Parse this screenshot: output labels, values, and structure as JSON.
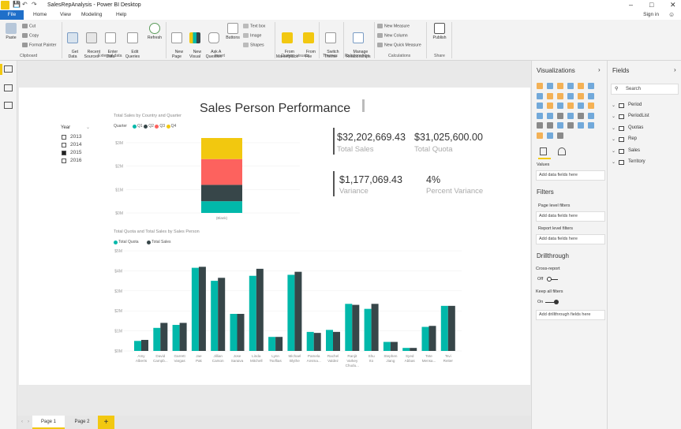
{
  "window": {
    "title": "SalesRepAnalysis - Power BI Desktop",
    "controls": {
      "minimize": "–",
      "restore": "□",
      "close": "✕"
    }
  },
  "menu": {
    "file": "File",
    "tabs": [
      "Home",
      "View",
      "Modeling",
      "Help"
    ],
    "signin": "Sign in"
  },
  "ribbon": {
    "clipboard": {
      "paste": "Paste",
      "cut": "Cut",
      "copy": "Copy",
      "format_painter": "Format Painter",
      "group": "Clipboard"
    },
    "external": {
      "get_data": "Get\nData",
      "recent_sources": "Recent\nSources",
      "enter_data": "Enter\nData",
      "edit_queries": "Edit\nQueries",
      "refresh": "Refresh",
      "group": "External data"
    },
    "insert": {
      "new_page": "New\nPage",
      "new_visual": "New\nVisual",
      "ask": "Ask A\nQuestion",
      "buttons": "Buttons",
      "text_box": "Text box",
      "image": "Image",
      "shapes": "Shapes",
      "group": "Insert"
    },
    "custom": {
      "marketplace": "From\nMarketplace",
      "file": "From\nFile",
      "group": "Custom visuals"
    },
    "themes": {
      "switch": "Switch\nTheme",
      "group": "Themes"
    },
    "relationships": {
      "manage": "Manage\nRelationships",
      "group": "Relationships"
    },
    "calculations": {
      "new_measure": "New Measure",
      "new_column": "New Column",
      "new_quick": "New Quick Measure",
      "group": "Calculations"
    },
    "share": {
      "publish": "Publish",
      "group": "Share"
    }
  },
  "report": {
    "title": "Sales Person Performance",
    "slicer": {
      "title": "Year",
      "items": [
        {
          "label": "2013",
          "checked": false
        },
        {
          "label": "2014",
          "checked": false
        },
        {
          "label": "2015",
          "checked": true
        },
        {
          "label": "2016",
          "checked": false
        }
      ]
    },
    "cards": [
      {
        "value": "$32,202,669.43",
        "label": "Total Sales"
      },
      {
        "value": "$31,025,600.00",
        "label": "Total Quota"
      },
      {
        "value": "$1,177,069.43",
        "label": "Variance"
      },
      {
        "value": "4%",
        "label": "Percent Variance"
      }
    ]
  },
  "chart_data": [
    {
      "type": "bar",
      "stacked": true,
      "title": "Total Sales by Country and Quarter",
      "legend_title": "Quarter",
      "legend_position": "top-left",
      "categories": [
        "(Blank)"
      ],
      "series": [
        {
          "name": "Q1",
          "color": "#01b8aa",
          "values": [
            0.5
          ]
        },
        {
          "name": "Q2",
          "color": "#374649",
          "values": [
            0.7
          ]
        },
        {
          "name": "Q3",
          "color": "#fd625e",
          "values": [
            1.1
          ]
        },
        {
          "name": "Q4",
          "color": "#f2c80f",
          "values": [
            0.9
          ]
        }
      ],
      "yticks": [
        "$0M",
        "$1M",
        "$2M",
        "$3M"
      ],
      "ylim": [
        0,
        3.2
      ]
    },
    {
      "type": "bar",
      "title": "Total Quota and Total Sales by Sales Person",
      "legend_position": "top-left",
      "categories": [
        "Amy Alberts",
        "David Campb...",
        "Garrett Vargas",
        "Jae Pak",
        "Jillian Carson",
        "Jose Saraiva",
        "Linda Mitchell",
        "Lynn Tsoflias",
        "Michael Blythe",
        "Pamela Ansma...",
        "Rachel Valdez",
        "Ranjit Varkey Chudu...",
        "Shu Ito",
        "Stephen Jiang",
        "Syed Abbas",
        "Tete Mensa...",
        "Tsvi Reiter"
      ],
      "series": [
        {
          "name": "Total Quota",
          "color": "#01b8aa",
          "values": [
            0.5,
            1.15,
            1.3,
            4.15,
            3.5,
            1.85,
            3.75,
            0.7,
            3.8,
            0.95,
            1.05,
            2.35,
            2.1,
            0.45,
            0.15,
            1.2,
            2.25
          ]
        },
        {
          "name": "Total Sales",
          "color": "#374649",
          "values": [
            0.55,
            1.4,
            1.4,
            4.2,
            3.65,
            1.85,
            4.1,
            0.7,
            3.95,
            0.9,
            0.95,
            2.3,
            2.35,
            0.45,
            0.15,
            1.25,
            2.25
          ]
        }
      ],
      "yticks": [
        "$0M",
        "$1M",
        "$2M",
        "$3M",
        "$4M",
        "$5M"
      ],
      "ylim": [
        0,
        5
      ]
    }
  ],
  "pages": {
    "tabs": [
      "Page 1",
      "Page 2"
    ],
    "active": 0,
    "add": "+"
  },
  "visualizations": {
    "title": "Visualizations",
    "values_label": "Values",
    "add_data": "Add data fields here",
    "filters_title": "Filters",
    "page_filters": "Page level filters",
    "report_filters": "Report level filters",
    "drillthrough_title": "Drillthrough",
    "cross_report": "Cross-report",
    "cross_state": "Off",
    "keep_filters": "Keep all filters",
    "keep_state": "On",
    "add_drill": "Add drillthrough fields here"
  },
  "fields": {
    "title": "Fields",
    "search_placeholder": "Search",
    "tables": [
      "Period",
      "PeriodList",
      "Quotas",
      "Rep",
      "Sales",
      "Territory"
    ]
  },
  "colors": {
    "accent": "#f2c811",
    "file_tab": "#1f6fc9",
    "teal": "#01b8aa",
    "dark": "#374649"
  }
}
